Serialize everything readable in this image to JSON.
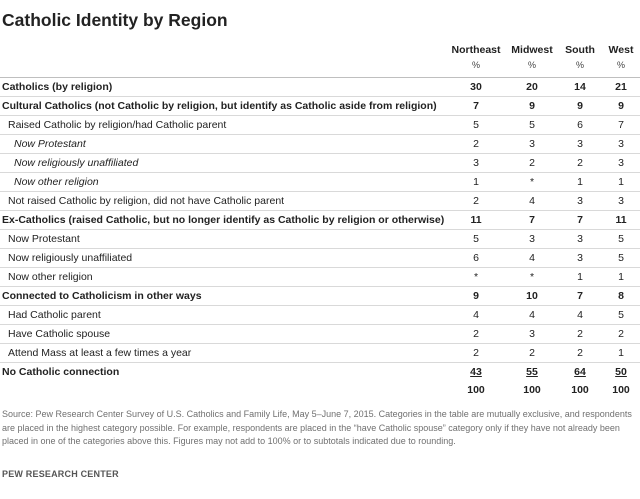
{
  "title": "Catholic Identity by Region",
  "columns": [
    "Northeast",
    "Midwest",
    "South",
    "West"
  ],
  "unit": "%",
  "rows": [
    {
      "label": "Catholics (by religion)",
      "style": "bold",
      "values": [
        "30",
        "20",
        "14",
        "21"
      ]
    },
    {
      "label": "Cultural Catholics (not Catholic by religion, but identify as Catholic aside from religion)",
      "style": "bold",
      "values": [
        "7",
        "9",
        "9",
        "9"
      ]
    },
    {
      "label": "Raised Catholic by religion/had Catholic parent",
      "style": "lv1",
      "values": [
        "5",
        "5",
        "6",
        "7"
      ]
    },
    {
      "label": "Now Protestant",
      "style": "lv2",
      "values": [
        "2",
        "3",
        "3",
        "3"
      ]
    },
    {
      "label": "Now religiously unaffiliated",
      "style": "lv2",
      "values": [
        "3",
        "2",
        "2",
        "3"
      ]
    },
    {
      "label": "Now other religion",
      "style": "lv2",
      "values": [
        "1",
        "*",
        "1",
        "1"
      ]
    },
    {
      "label": "Not raised Catholic by religion, did not have Catholic parent",
      "style": "lv1",
      "values": [
        "2",
        "4",
        "3",
        "3"
      ]
    },
    {
      "label": "Ex-Catholics (raised Catholic, but no longer identify as Catholic by religion or otherwise)",
      "style": "bold",
      "values": [
        "11",
        "7",
        "7",
        "11"
      ]
    },
    {
      "label": "Now Protestant",
      "style": "lv1",
      "values": [
        "5",
        "3",
        "3",
        "5"
      ]
    },
    {
      "label": "Now religiously unaffiliated",
      "style": "lv1",
      "values": [
        "6",
        "4",
        "3",
        "5"
      ]
    },
    {
      "label": "Now other religion",
      "style": "lv1",
      "values": [
        "*",
        "*",
        "1",
        "1"
      ]
    },
    {
      "label": "Connected to Catholicism in other ways",
      "style": "bold",
      "values": [
        "9",
        "10",
        "7",
        "8"
      ]
    },
    {
      "label": "Had Catholic parent",
      "style": "lv1",
      "values": [
        "4",
        "4",
        "4",
        "5"
      ]
    },
    {
      "label": "Have Catholic spouse",
      "style": "lv1",
      "values": [
        "2",
        "3",
        "2",
        "2"
      ]
    },
    {
      "label": "Attend Mass at least a few times a year",
      "style": "lv1",
      "values": [
        "2",
        "2",
        "2",
        "1"
      ]
    },
    {
      "label": "No Catholic connection",
      "style": "bold ul",
      "values": [
        "43",
        "55",
        "64",
        "50"
      ]
    }
  ],
  "totals": [
    "100",
    "100",
    "100",
    "100"
  ],
  "source": "Source: Pew Research Center Survey of U.S. Catholics and Family Life, May 5–June 7, 2015. Categories in the table are mutually exclusive, and respondents are placed in the highest category possible. For example, respondents are placed in the “have Catholic spouse” category only if they have not already been placed in one of the categories above this. Figures may not add to 100% or to subtotals indicated due to rounding.",
  "brand": "PEW RESEARCH CENTER"
}
